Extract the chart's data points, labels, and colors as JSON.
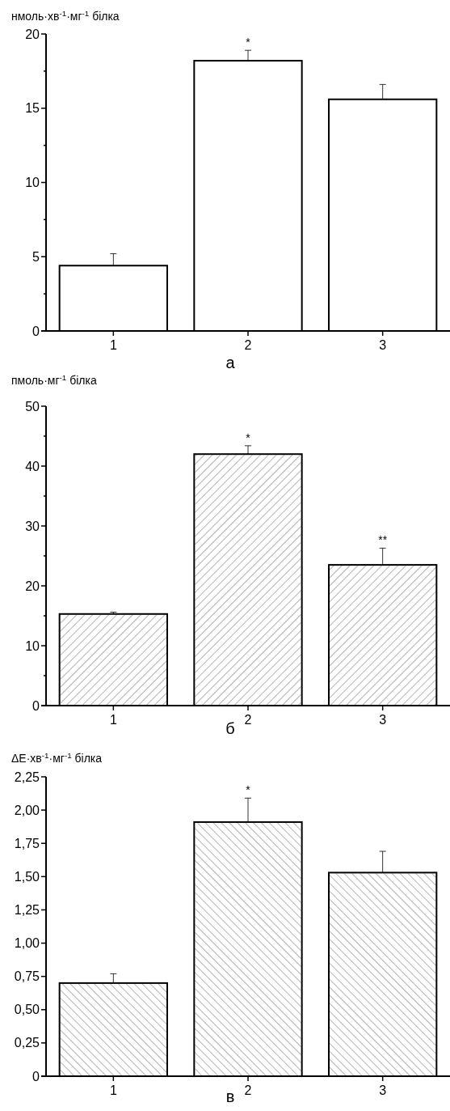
{
  "chart_data": [
    {
      "type": "bar",
      "xlabel": "а",
      "ylabel": "нмоль·хв$^{-1}$·мг$^{-1}$ білка",
      "categories": [
        "1",
        "2",
        "3"
      ],
      "values": [
        4.4,
        18.2,
        15.6
      ],
      "color": "#ffffff",
      "errors": [
        [
          4.4,
          5.2
        ],
        [
          18.2,
          18.9
        ],
        [
          15.6,
          16.6
        ]
      ],
      "ylim": [
        0,
        20
      ],
      "yticks": [
        0,
        {
          "value": 2.5,
          "label": null
        },
        5,
        {
          "value": 7.5,
          "label": null
        },
        10,
        {
          "value": 12.5,
          "label": null
        },
        15,
        {
          "value": 17.5,
          "label": null
        },
        20
      ],
      "annotations": [
        {
          "text": "*",
          "x": "2",
          "y": 18.9
        }
      ]
    },
    {
      "type": "bar",
      "xlabel": "б",
      "ylabel": "пмоль·мг$^{-1}$ білка",
      "categories": [
        "1",
        "2",
        "3"
      ],
      "values": [
        15.3,
        42,
        23.5
      ],
      "color": "#ffffff",
      "errors": [
        [
          15.3,
          15.6
        ],
        [
          42,
          43.4
        ],
        [
          23.5,
          26.3
        ]
      ],
      "ylim": [
        0,
        50
      ],
      "yticks": [
        0,
        {
          "value": 5,
          "label": null
        },
        10,
        {
          "value": 15,
          "label": null
        },
        20,
        {
          "value": 25,
          "label": null
        },
        30,
        {
          "value": 35,
          "label": null
        },
        40,
        {
          "value": 45,
          "label": null
        },
        50
      ],
      "annotations": [
        {
          "text": "*",
          "x": "2",
          "y": 43.4
        },
        {
          "text": "**",
          "x": "3",
          "y": 26.3
        }
      ]
    },
    {
      "type": "bar",
      "xlabel": "в",
      "ylabel": "ΔE·хв$^{-1}$·мг$^{-1}$ білка",
      "categories": [
        "1",
        "2",
        "3"
      ],
      "values": [
        0.7,
        1.91,
        1.53
      ],
      "color": "#ffffff",
      "errors": [
        [
          0.7,
          0.77
        ],
        [
          1.91,
          2.09
        ],
        [
          1.53,
          1.69
        ]
      ],
      "ylim": [
        0,
        2.25
      ],
      "yticks": [
        0,
        {
          "value": 0.25,
          "label": "0,25"
        },
        {
          "value": 0.5,
          "label": "0,50"
        },
        {
          "value": 0.75,
          "label": "0,75"
        },
        {
          "value": 1,
          "label": "1,00"
        },
        {
          "value": 1.25,
          "label": "1,25"
        },
        {
          "value": 1.5,
          "label": "1,50"
        },
        {
          "value": 1.75,
          "label": "1,75"
        },
        {
          "value": 2,
          "label": "2,00"
        },
        {
          "value": 2.25,
          "label": "2,25"
        }
      ],
      "annotations": [
        {
          "text": "*",
          "x": "2",
          "y": 2.09
        }
      ]
    }
  ]
}
